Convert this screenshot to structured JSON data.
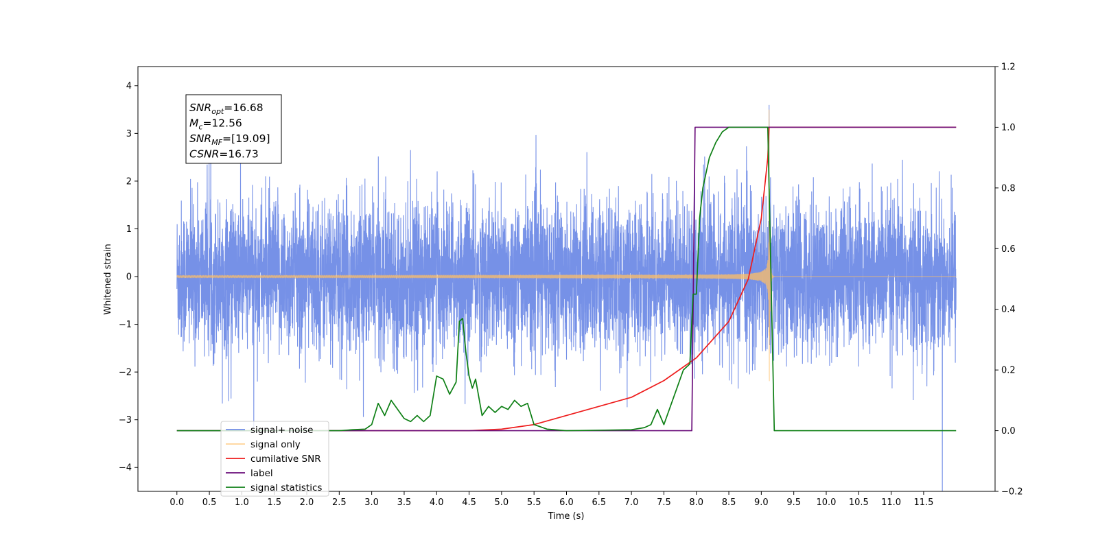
{
  "chart_data": {
    "type": "line",
    "xlabel": "Time (s)",
    "ylabel": "Whitened strain",
    "xlim": [
      -0.6,
      12.6
    ],
    "ylim": [
      -4.5,
      4.4
    ],
    "y2lim": [
      -0.2,
      1.2
    ],
    "x_ticks": [
      "0.0",
      "0.5",
      "1.0",
      "1.5",
      "2.0",
      "2.5",
      "3.0",
      "3.5",
      "4.0",
      "4.5",
      "5.0",
      "5.5",
      "6.0",
      "6.5",
      "7.0",
      "7.5",
      "8.0",
      "8.5",
      "9.0",
      "9.5",
      "10.0",
      "10.5",
      "11.0",
      "11.5"
    ],
    "x_tick_values": [
      0,
      0.5,
      1,
      1.5,
      2,
      2.5,
      3,
      3.5,
      4,
      4.5,
      5,
      5.5,
      6,
      6.5,
      7,
      7.5,
      8,
      8.5,
      9,
      9.5,
      10,
      10.5,
      11,
      11.5
    ],
    "y_ticks": [
      "4",
      "3",
      "2",
      "1",
      "0",
      "−1",
      "−2",
      "−3",
      "−4"
    ],
    "y_tick_values": [
      4,
      3,
      2,
      1,
      0,
      -1,
      -2,
      -3,
      -4
    ],
    "y2_ticks": [
      "1.2",
      "1.0",
      "0.8",
      "0.6",
      "0.4",
      "0.2",
      "0.0",
      "−0.2"
    ],
    "y2_tick_values": [
      1.2,
      1.0,
      0.8,
      0.6,
      0.4,
      0.2,
      0.0,
      -0.2
    ],
    "grid": false,
    "legend_position": "lower-left",
    "annotation": {
      "lines": [
        {
          "base": "SNR",
          "sub": "opt",
          "rest": "=16.68"
        },
        {
          "base": "M",
          "sub": "c",
          "rest": "=12.56"
        },
        {
          "base": "SNR",
          "sub": "MF",
          "rest": "=[19.09]"
        },
        {
          "base": "CSNR",
          "sub": "",
          "rest": "=16.73"
        }
      ]
    },
    "series": [
      {
        "name": "signal+ noise",
        "axis": "left",
        "color": "#6f8be6",
        "kind": "noise",
        "x_range": [
          0,
          12
        ],
        "noise_sigma": 1.0
      },
      {
        "name": "signal only",
        "axis": "left",
        "color": "#ffbf66",
        "kind": "chirp",
        "x_range": [
          0,
          12
        ],
        "merger_time": 9.12,
        "peak_amplitude": 3.5
      },
      {
        "name": "cumilative SNR",
        "axis": "right",
        "color": "#ee1c1c",
        "x": [
          0,
          4.5,
          5,
          5.5,
          6,
          6.5,
          7,
          7.5,
          8,
          8.5,
          8.8,
          9.0,
          9.1,
          9.12,
          12
        ],
        "y": [
          0,
          0,
          0.005,
          0.02,
          0.05,
          0.08,
          0.11,
          0.165,
          0.24,
          0.36,
          0.5,
          0.7,
          0.9,
          1.0,
          1.0
        ]
      },
      {
        "name": "label",
        "axis": "right",
        "color": "#6a0d7a",
        "x": [
          0,
          7.93,
          7.98,
          9.1,
          9.13,
          12
        ],
        "y": [
          0,
          0,
          1.0,
          1.0,
          1.0,
          1.0
        ]
      },
      {
        "name": "signal statistics",
        "axis": "right",
        "color": "#0d7f14",
        "x": [
          0,
          2.5,
          2.7,
          2.9,
          3.0,
          3.1,
          3.2,
          3.3,
          3.4,
          3.5,
          3.6,
          3.7,
          3.8,
          3.9,
          4.0,
          4.1,
          4.2,
          4.3,
          4.35,
          4.4,
          4.45,
          4.5,
          4.55,
          4.6,
          4.7,
          4.8,
          4.9,
          5.0,
          5.1,
          5.2,
          5.3,
          5.4,
          5.5,
          5.7,
          6.0,
          7.0,
          7.2,
          7.3,
          7.4,
          7.5,
          7.6,
          7.7,
          7.8,
          7.9,
          7.95,
          8.0,
          8.05,
          8.1,
          8.2,
          8.3,
          8.4,
          8.5,
          9.0,
          9.1,
          9.15,
          9.2,
          12
        ],
        "y": [
          0,
          0,
          0.003,
          0.005,
          0.02,
          0.09,
          0.05,
          0.1,
          0.07,
          0.04,
          0.03,
          0.05,
          0.03,
          0.05,
          0.18,
          0.17,
          0.12,
          0.16,
          0.36,
          0.37,
          0.26,
          0.18,
          0.14,
          0.17,
          0.05,
          0.08,
          0.06,
          0.08,
          0.07,
          0.1,
          0.08,
          0.09,
          0.02,
          0.005,
          0.0,
          0.003,
          0.01,
          0.02,
          0.07,
          0.02,
          0.08,
          0.14,
          0.2,
          0.22,
          0.45,
          0.45,
          0.7,
          0.8,
          0.9,
          0.95,
          0.985,
          1.0,
          1.0,
          1.0,
          0.5,
          0.0,
          0.0
        ]
      }
    ]
  }
}
